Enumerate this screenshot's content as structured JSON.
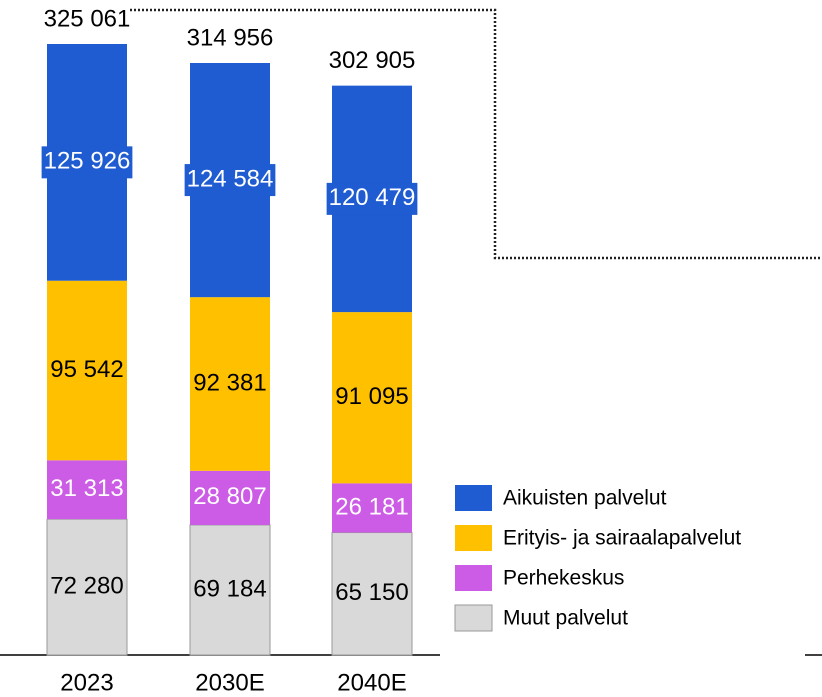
{
  "chart_data": {
    "type": "stacked_bar",
    "categories": [
      "2023",
      "2030E",
      "2040E"
    ],
    "series": [
      {
        "name": "Aikuisten palvelut",
        "color": "#1f5bd1",
        "values": [
          125926,
          124584,
          120479
        ],
        "value_labels": [
          "125 926",
          "124 584",
          "120 479"
        ]
      },
      {
        "name": "Erityis- ja sairaalapalvelut",
        "color": "#ffc000",
        "values": [
          95542,
          92381,
          91095
        ],
        "value_labels": [
          "95 542",
          "92 381",
          "91 095"
        ]
      },
      {
        "name": "Perhekeskus",
        "color": "#cc5ce6",
        "values": [
          31313,
          28807,
          26181
        ],
        "value_labels": [
          "31 313",
          "28 807",
          "26 181"
        ]
      },
      {
        "name": "Muut palvelut",
        "color": "#d9d9d9",
        "values": [
          72280,
          69184,
          65150
        ],
        "value_labels": [
          "72 280",
          "69 184",
          "65 150"
        ]
      }
    ],
    "totals": [
      325061,
      314956,
      302905
    ],
    "total_labels": [
      "325 061",
      "314 956",
      "302 905"
    ]
  }
}
